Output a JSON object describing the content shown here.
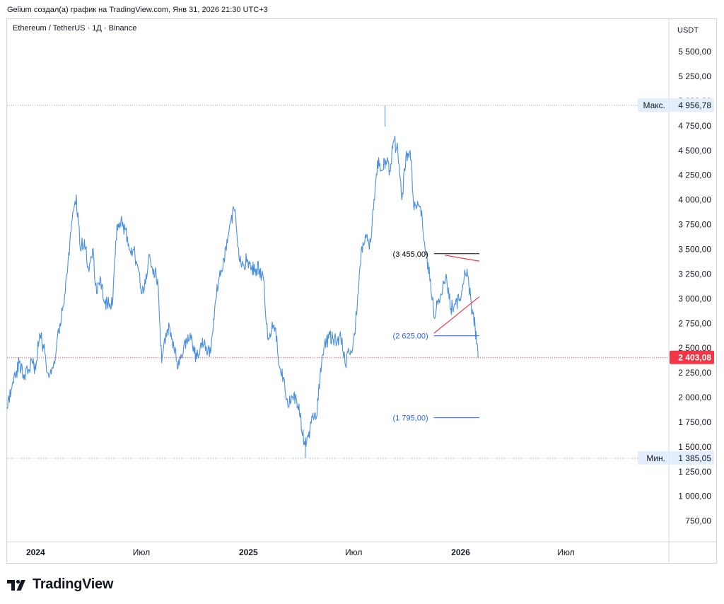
{
  "header": {
    "attribution": "Gelium создал(а) график на TradingView.com, Янв 31, 2026 21:30 UTC+3"
  },
  "symbol": {
    "title": "Ethereum / TetherUS · 1Д · Binance"
  },
  "brand": {
    "name": "TradingView"
  },
  "colors": {
    "series": "#4a8fdc",
    "current": "#f23645",
    "line": "#2962ff",
    "axis_text": "#131722"
  },
  "chart_data": {
    "type": "line",
    "title": "Ethereum / TetherUS · 1Д · Binance",
    "currency_label": "USDT",
    "x_range": [
      "2023-11-13",
      "2026-12-25"
    ],
    "ylim": [
      540,
      5830
    ],
    "y_axis": {
      "position": "right",
      "ticks": [
        "750,00",
        "1 000,00",
        "1 250,00",
        "1 500,00",
        "1 750,00",
        "2 000,00",
        "2 250,00",
        "2 500,00",
        "2 750,00",
        "3 000,00",
        "3 250,00",
        "3 500,00",
        "3 750,00",
        "4 000,00",
        "4 250,00",
        "4 500,00",
        "4 750,00",
        "5 000,00",
        "5 250,00",
        "5 500,00"
      ]
    },
    "x_axis": {
      "ticks": [
        {
          "date": "2024-01-01",
          "label": "2024",
          "bold": true
        },
        {
          "date": "2024-07-01",
          "label": "Июл",
          "bold": false
        },
        {
          "date": "2025-01-01",
          "label": "2025",
          "bold": true
        },
        {
          "date": "2025-07-01",
          "label": "Июл",
          "bold": false
        },
        {
          "date": "2026-01-01",
          "label": "2026",
          "bold": true
        },
        {
          "date": "2026-07-01",
          "label": "Июл",
          "bold": false
        }
      ]
    },
    "series": [
      {
        "points": [
          [
            "2023-11-13",
            1900
          ],
          [
            "2023-11-20",
            2080
          ],
          [
            "2023-11-27",
            2200
          ],
          [
            "2023-12-04",
            2350
          ],
          [
            "2023-12-11",
            2230
          ],
          [
            "2023-12-18",
            2260
          ],
          [
            "2023-12-25",
            2380
          ],
          [
            "2024-01-01",
            2280
          ],
          [
            "2024-01-08",
            2650
          ],
          [
            "2024-01-15",
            2500
          ],
          [
            "2024-01-22",
            2250
          ],
          [
            "2024-01-29",
            2300
          ],
          [
            "2024-02-05",
            2450
          ],
          [
            "2024-02-12",
            2750
          ],
          [
            "2024-02-19",
            2950
          ],
          [
            "2024-02-26",
            3400
          ],
          [
            "2024-03-04",
            3800
          ],
          [
            "2024-03-11",
            4050
          ],
          [
            "2024-03-18",
            3500
          ],
          [
            "2024-03-25",
            3600
          ],
          [
            "2024-04-01",
            3300
          ],
          [
            "2024-04-08",
            3500
          ],
          [
            "2024-04-15",
            3050
          ],
          [
            "2024-04-22",
            3200
          ],
          [
            "2024-04-29",
            2950
          ],
          [
            "2024-05-06",
            2950
          ],
          [
            "2024-05-13",
            3000
          ],
          [
            "2024-05-20",
            3750
          ],
          [
            "2024-05-27",
            3800
          ],
          [
            "2024-06-03",
            3700
          ],
          [
            "2024-06-10",
            3500
          ],
          [
            "2024-06-17",
            3500
          ],
          [
            "2024-06-24",
            3350
          ],
          [
            "2024-07-01",
            3050
          ],
          [
            "2024-07-08",
            3150
          ],
          [
            "2024-07-15",
            3450
          ],
          [
            "2024-07-22",
            3300
          ],
          [
            "2024-07-29",
            3200
          ],
          [
            "2024-08-05",
            2350
          ],
          [
            "2024-08-12",
            2650
          ],
          [
            "2024-08-19",
            2700
          ],
          [
            "2024-08-26",
            2500
          ],
          [
            "2024-09-02",
            2300
          ],
          [
            "2024-09-09",
            2400
          ],
          [
            "2024-09-16",
            2600
          ],
          [
            "2024-09-23",
            2650
          ],
          [
            "2024-09-30",
            2450
          ],
          [
            "2024-10-07",
            2400
          ],
          [
            "2024-10-14",
            2600
          ],
          [
            "2024-10-21",
            2500
          ],
          [
            "2024-10-28",
            2450
          ],
          [
            "2024-11-04",
            2900
          ],
          [
            "2024-11-11",
            3200
          ],
          [
            "2024-11-18",
            3300
          ],
          [
            "2024-11-25",
            3600
          ],
          [
            "2024-12-02",
            3800
          ],
          [
            "2024-12-09",
            3900
          ],
          [
            "2024-12-16",
            3400
          ],
          [
            "2024-12-23",
            3350
          ],
          [
            "2024-12-30",
            3400
          ],
          [
            "2025-01-06",
            3300
          ],
          [
            "2025-01-13",
            3300
          ],
          [
            "2025-01-20",
            3300
          ],
          [
            "2025-01-27",
            3200
          ],
          [
            "2025-02-03",
            2600
          ],
          [
            "2025-02-10",
            2700
          ],
          [
            "2025-02-17",
            2700
          ],
          [
            "2025-02-24",
            2300
          ],
          [
            "2025-03-03",
            2200
          ],
          [
            "2025-03-10",
            1900
          ],
          [
            "2025-03-17",
            2000
          ],
          [
            "2025-03-24",
            2000
          ],
          [
            "2025-03-31",
            1800
          ],
          [
            "2025-04-07",
            1550
          ],
          [
            "2025-04-14",
            1600
          ],
          [
            "2025-04-21",
            1800
          ],
          [
            "2025-04-28",
            1800
          ],
          [
            "2025-05-05",
            2300
          ],
          [
            "2025-05-12",
            2550
          ],
          [
            "2025-05-19",
            2600
          ],
          [
            "2025-05-26",
            2600
          ],
          [
            "2025-06-02",
            2550
          ],
          [
            "2025-06-09",
            2600
          ],
          [
            "2025-06-16",
            2350
          ],
          [
            "2025-06-23",
            2450
          ],
          [
            "2025-06-30",
            2550
          ],
          [
            "2025-07-07",
            2900
          ],
          [
            "2025-07-14",
            3500
          ],
          [
            "2025-07-21",
            3650
          ],
          [
            "2025-07-28",
            3500
          ],
          [
            "2025-08-04",
            3900
          ],
          [
            "2025-08-11",
            4400
          ],
          [
            "2025-08-18",
            4300
          ],
          [
            "2025-08-25",
            4400
          ],
          [
            "2025-09-01",
            4300
          ],
          [
            "2025-09-08",
            4600
          ],
          [
            "2025-09-15",
            4500
          ],
          [
            "2025-09-22",
            4000
          ],
          [
            "2025-09-29",
            4450
          ],
          [
            "2025-10-06",
            4500
          ],
          [
            "2025-10-13",
            3900
          ],
          [
            "2025-10-20",
            3950
          ],
          [
            "2025-10-27",
            3800
          ],
          [
            "2025-11-03",
            3450
          ],
          [
            "2025-11-10",
            3200
          ],
          [
            "2025-11-17",
            2800
          ],
          [
            "2025-11-24",
            3000
          ],
          [
            "2025-12-01",
            3100
          ],
          [
            "2025-12-08",
            3200
          ],
          [
            "2025-12-15",
            2900
          ],
          [
            "2025-12-22",
            2950
          ],
          [
            "2025-12-29",
            2980
          ],
          [
            "2026-01-05",
            3150
          ],
          [
            "2026-01-12",
            3300
          ],
          [
            "2026-01-19",
            2950
          ],
          [
            "2026-01-26",
            2700
          ],
          [
            "2026-01-31",
            2403.08
          ]
        ]
      }
    ],
    "max": {
      "label": "Макс.",
      "value_label": "4 956,78",
      "value": 4956.78,
      "date": "2025-08-24"
    },
    "min": {
      "label": "Мин.",
      "value_label": "1 385,05",
      "value": 1385.05,
      "date": "2025-04-09"
    },
    "current": {
      "value_label": "2 403,08",
      "value": 2403.08
    },
    "levels": [
      {
        "label": "(3 455,00)",
        "value": 3455,
        "from": "2025-11-16",
        "to": "2026-02-02",
        "color": "#000000"
      },
      {
        "label": "(2 625,00)",
        "value": 2625,
        "from": "2025-11-16",
        "to": "2026-02-02",
        "color": "#2962ff"
      },
      {
        "label": "(1 795,00)",
        "value": 1795,
        "from": "2025-11-16",
        "to": "2026-02-02",
        "color": "#2962ff"
      }
    ],
    "trendlines": [
      {
        "from": [
          "2025-12-05",
          3440
        ],
        "to": [
          "2026-02-02",
          3380
        ],
        "color": "#f23645"
      },
      {
        "from": [
          "2025-11-16",
          2650
        ],
        "to": [
          "2026-02-02",
          3020
        ],
        "color": "#f23645"
      }
    ]
  }
}
